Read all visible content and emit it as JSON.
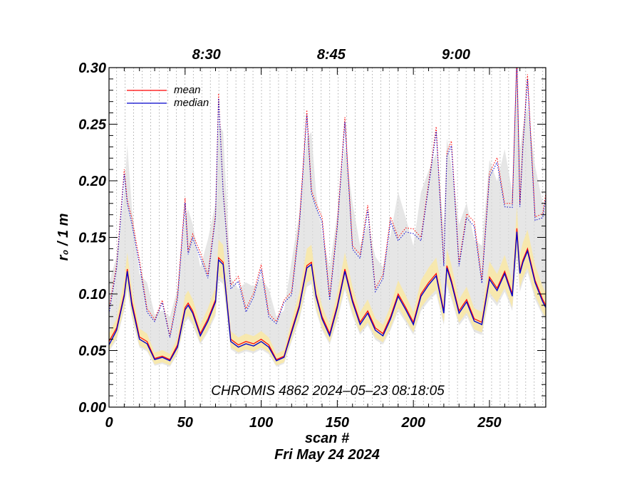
{
  "chart_data": {
    "type": "line",
    "xlabel": "scan #",
    "ylabel": "r₀ / 1 m",
    "date_label": "Fri May 24 2024",
    "annotation": "CHROMIS 4862 2024–05–23 08:18:05",
    "xlim": [
      0,
      287
    ],
    "ylim": [
      0.0,
      0.3
    ],
    "grid": "vertical dotted lines per scan",
    "legend_position": "top-left",
    "x_ticks": [
      {
        "value": 0,
        "label": "0"
      },
      {
        "value": 50,
        "label": "50"
      },
      {
        "value": 100,
        "label": "100"
      },
      {
        "value": 150,
        "label": "150"
      },
      {
        "value": 200,
        "label": "200"
      },
      {
        "value": 250,
        "label": "250"
      }
    ],
    "y_ticks": [
      {
        "value": 0.0,
        "label": "0.00"
      },
      {
        "value": 0.05,
        "label": "0.05"
      },
      {
        "value": 0.1,
        "label": "0.10"
      },
      {
        "value": 0.15,
        "label": "0.15"
      },
      {
        "value": 0.2,
        "label": "0.20"
      },
      {
        "value": 0.25,
        "label": "0.25"
      },
      {
        "value": 0.3,
        "label": "0.30"
      }
    ],
    "time_ticks": [
      {
        "value": 64,
        "label": "8:30"
      },
      {
        "value": 146,
        "label": "8:45"
      },
      {
        "value": 228,
        "label": "9:00"
      }
    ],
    "series": [
      {
        "name": "mean",
        "color": "#ff0000",
        "x": [
          0,
          5,
          10,
          12,
          15,
          20,
          25,
          30,
          35,
          40,
          45,
          50,
          52,
          55,
          60,
          65,
          70,
          72,
          75,
          80,
          85,
          90,
          95,
          100,
          105,
          110,
          115,
          120,
          125,
          130,
          133,
          136,
          140,
          145,
          150,
          155,
          160,
          165,
          170,
          175,
          180,
          185,
          190,
          195,
          200,
          205,
          210,
          215,
          220,
          222,
          225,
          230,
          235,
          240,
          245,
          250,
          255,
          260,
          265,
          268,
          270,
          272,
          275,
          280,
          285,
          287
        ],
        "y": [
          0.058,
          0.07,
          0.1,
          0.122,
          0.093,
          0.062,
          0.058,
          0.043,
          0.045,
          0.042,
          0.055,
          0.088,
          0.092,
          0.085,
          0.065,
          0.078,
          0.095,
          0.132,
          0.128,
          0.06,
          0.055,
          0.058,
          0.056,
          0.06,
          0.055,
          0.042,
          0.045,
          0.068,
          0.09,
          0.125,
          0.128,
          0.1,
          0.08,
          0.065,
          0.09,
          0.122,
          0.095,
          0.075,
          0.085,
          0.07,
          0.065,
          0.08,
          0.1,
          0.088,
          0.075,
          0.1,
          0.11,
          0.118,
          0.085,
          0.125,
          0.112,
          0.085,
          0.095,
          0.078,
          0.075,
          0.115,
          0.105,
          0.12,
          0.1,
          0.158,
          0.12,
          0.13,
          0.14,
          0.112,
          0.095,
          0.09
        ]
      },
      {
        "name": "median",
        "color": "#0000cc",
        "x": [
          0,
          5,
          10,
          12,
          15,
          20,
          25,
          30,
          35,
          40,
          45,
          50,
          52,
          55,
          60,
          65,
          70,
          72,
          75,
          80,
          85,
          90,
          95,
          100,
          105,
          110,
          115,
          120,
          125,
          130,
          133,
          136,
          140,
          145,
          150,
          155,
          160,
          165,
          170,
          175,
          180,
          185,
          190,
          195,
          200,
          205,
          210,
          215,
          220,
          222,
          225,
          230,
          235,
          240,
          245,
          250,
          255,
          260,
          265,
          268,
          270,
          272,
          275,
          280,
          285,
          287
        ],
        "y": [
          0.055,
          0.068,
          0.098,
          0.12,
          0.09,
          0.06,
          0.056,
          0.042,
          0.044,
          0.041,
          0.053,
          0.086,
          0.09,
          0.083,
          0.063,
          0.076,
          0.093,
          0.13,
          0.126,
          0.058,
          0.053,
          0.056,
          0.054,
          0.058,
          0.053,
          0.041,
          0.044,
          0.066,
          0.088,
          0.123,
          0.126,
          0.098,
          0.078,
          0.063,
          0.088,
          0.12,
          0.093,
          0.073,
          0.083,
          0.068,
          0.063,
          0.078,
          0.098,
          0.086,
          0.073,
          0.098,
          0.108,
          0.116,
          0.083,
          0.123,
          0.11,
          0.083,
          0.093,
          0.076,
          0.073,
          0.113,
          0.103,
          0.118,
          0.098,
          0.155,
          0.118,
          0.128,
          0.138,
          0.11,
          0.093,
          0.088
        ]
      }
    ]
  }
}
